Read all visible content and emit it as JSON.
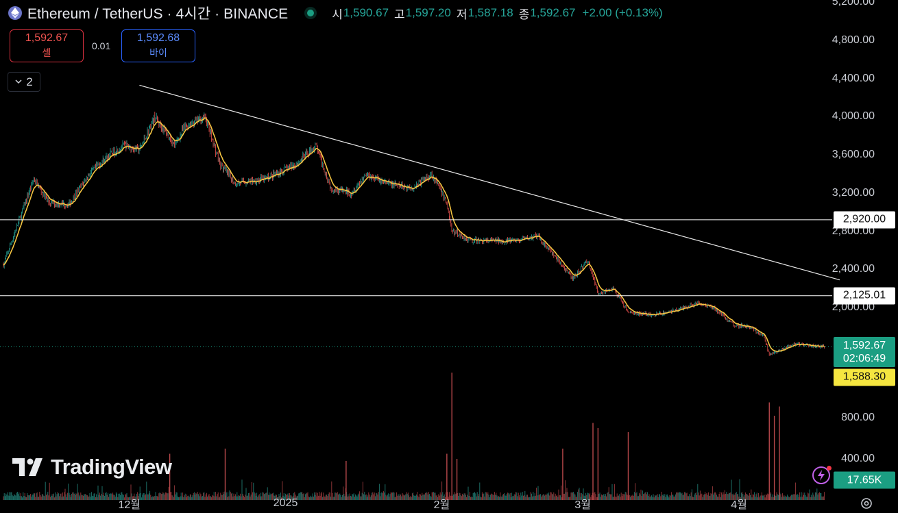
{
  "header": {
    "symbol_title": "Ethereum / TetherUS · 4시간 · BINANCE",
    "open_label": "시",
    "open": "1,590.67",
    "high_label": "고",
    "high": "1,597.20",
    "low_label": "저",
    "low": "1,587.18",
    "close_label": "종",
    "close": "1,592.67",
    "change": "+2.00 (+0.13%)"
  },
  "trade": {
    "sell_price": "1,592.67",
    "sell_label": "셀",
    "spread": "0.01",
    "buy_price": "1,592.68",
    "buy_label": "바이"
  },
  "indicators_toggle": {
    "count": "2"
  },
  "brand": {
    "name": "TradingView"
  },
  "price_axis": {
    "labels": [
      "5,200.00",
      "4,800.00",
      "4,400.00",
      "4,000.00",
      "3,600.00",
      "3,200.00",
      "2,800.00",
      "2,400.00",
      "2,000.00"
    ],
    "volume_labels": [
      "800.00",
      "400.00"
    ]
  },
  "tags": {
    "level_high": "2,920.00",
    "level_low": "2,125.01",
    "last_price": "1,592.67",
    "countdown": "02:06:49",
    "alert": "1,588.30",
    "volume": "17.65K"
  },
  "time_axis": {
    "labels": [
      "12월",
      "2025",
      "2월",
      "3월",
      "4월"
    ]
  },
  "colors": {
    "up": "#26a69a",
    "down": "#ef5350",
    "ma": "#f5c542",
    "accent": "#1b9e82",
    "alert": "#f5e640",
    "sell": "#ef5350",
    "buy": "#5b8cff"
  },
  "chart_data": {
    "type": "candlestick",
    "symbol": "ETH/USDT",
    "interval": "4시간",
    "exchange": "BINANCE",
    "y_range": [
      1300,
      5300
    ],
    "horizontal_levels": [
      2920.0,
      2125.01
    ],
    "trendline": [
      {
        "date": "2024-12-03",
        "price": 4330
      },
      {
        "date": "2025-04-21",
        "price": 2290
      }
    ],
    "price_path": [
      {
        "date": "2024-11-06",
        "price": 2450
      },
      {
        "date": "2024-11-09",
        "price": 2900
      },
      {
        "date": "2024-11-12",
        "price": 3350
      },
      {
        "date": "2024-11-15",
        "price": 3100
      },
      {
        "date": "2024-11-19",
        "price": 3080
      },
      {
        "date": "2024-11-23",
        "price": 3400
      },
      {
        "date": "2024-11-27",
        "price": 3600
      },
      {
        "date": "2024-11-30",
        "price": 3700
      },
      {
        "date": "2024-12-03",
        "price": 3650
      },
      {
        "date": "2024-12-06",
        "price": 4000
      },
      {
        "date": "2024-12-10",
        "price": 3700
      },
      {
        "date": "2024-12-12",
        "price": 3900
      },
      {
        "date": "2024-12-16",
        "price": 4000
      },
      {
        "date": "2024-12-19",
        "price": 3500
      },
      {
        "date": "2024-12-22",
        "price": 3300
      },
      {
        "date": "2024-12-28",
        "price": 3350
      },
      {
        "date": "2025-01-03",
        "price": 3500
      },
      {
        "date": "2025-01-07",
        "price": 3700
      },
      {
        "date": "2025-01-10",
        "price": 3250
      },
      {
        "date": "2025-01-14",
        "price": 3200
      },
      {
        "date": "2025-01-17",
        "price": 3400
      },
      {
        "date": "2025-01-21",
        "price": 3300
      },
      {
        "date": "2025-01-26",
        "price": 3250
      },
      {
        "date": "2025-01-30",
        "price": 3400
      },
      {
        "date": "2025-02-02",
        "price": 3100
      },
      {
        "date": "2025-02-03",
        "price": 2800
      },
      {
        "date": "2025-02-07",
        "price": 2700
      },
      {
        "date": "2025-02-12",
        "price": 2700
      },
      {
        "date": "2025-02-16",
        "price": 2700
      },
      {
        "date": "2025-02-20",
        "price": 2750
      },
      {
        "date": "2025-02-24",
        "price": 2500
      },
      {
        "date": "2025-02-27",
        "price": 2300
      },
      {
        "date": "2025-03-02",
        "price": 2500
      },
      {
        "date": "2025-03-04",
        "price": 2150
      },
      {
        "date": "2025-03-07",
        "price": 2200
      },
      {
        "date": "2025-03-10",
        "price": 1950
      },
      {
        "date": "2025-03-15",
        "price": 1920
      },
      {
        "date": "2025-03-20",
        "price": 1980
      },
      {
        "date": "2025-03-24",
        "price": 2050
      },
      {
        "date": "2025-03-27",
        "price": 2000
      },
      {
        "date": "2025-03-31",
        "price": 1820
      },
      {
        "date": "2025-04-03",
        "price": 1800
      },
      {
        "date": "2025-04-06",
        "price": 1700
      },
      {
        "date": "2025-04-07",
        "price": 1500
      },
      {
        "date": "2025-04-09",
        "price": 1550
      },
      {
        "date": "2025-04-12",
        "price": 1620
      },
      {
        "date": "2025-04-16",
        "price": 1600
      },
      {
        "date": "2025-04-18",
        "price": 1592.67
      }
    ],
    "volume_spikes": [
      {
        "date": "2024-12-09",
        "volume": 450
      },
      {
        "date": "2024-12-20",
        "volume": 500
      },
      {
        "date": "2025-01-13",
        "volume": 380
      },
      {
        "date": "2025-02-02",
        "volume": 450
      },
      {
        "date": "2025-02-03",
        "volume": 1240
      },
      {
        "date": "2025-02-04",
        "volume": 400
      },
      {
        "date": "2025-02-25",
        "volume": 500
      },
      {
        "date": "2025-03-03",
        "volume": 750
      },
      {
        "date": "2025-03-04",
        "volume": 700
      },
      {
        "date": "2025-03-10",
        "volume": 660
      },
      {
        "date": "2025-04-07",
        "volume": 950
      },
      {
        "date": "2025-04-08",
        "volume": 820
      },
      {
        "date": "2025-04-09",
        "volume": 910
      }
    ],
    "volume_range": [
      0,
      1300
    ]
  }
}
